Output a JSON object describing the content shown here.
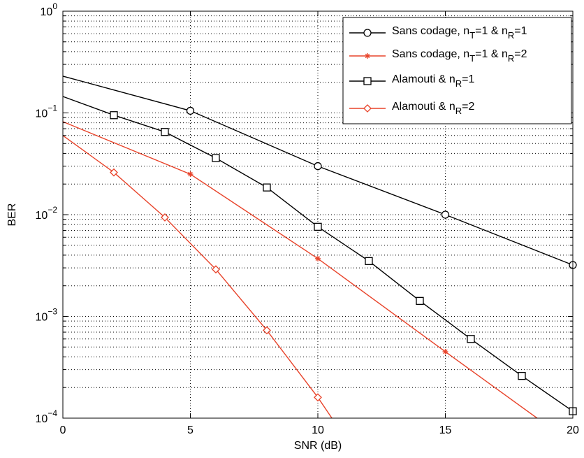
{
  "chart_data": {
    "type": "line",
    "xlabel": "SNR (dB)",
    "ylabel": "BER",
    "xlim": [
      0,
      20
    ],
    "ylim": [
      0.0001,
      1
    ],
    "yscale": "log",
    "grid": true,
    "legend_position": "top-right",
    "x_ticks": [
      "0",
      "5",
      "10",
      "15",
      "20"
    ],
    "y_ticks": [
      {
        "base": "10",
        "exp": "0"
      },
      {
        "base": "10",
        "exp": "−1"
      },
      {
        "base": "10",
        "exp": "−2"
      },
      {
        "base": "10",
        "exp": "−3"
      },
      {
        "base": "10",
        "exp": "−4"
      }
    ],
    "series": [
      {
        "name": "Sans codage, n_T=1 & n_R=1",
        "legend": {
          "pre": "Sans codage, n",
          "s1": "T",
          "mid": "=1 & n",
          "s2": "R",
          "post": "=1"
        },
        "color": "#000000",
        "marker": "circle",
        "line_x": [
          0,
          5,
          10,
          15,
          20
        ],
        "line_y": [
          0.23,
          0.105,
          0.03,
          0.01,
          0.0032
        ],
        "marker_x": [
          5,
          10,
          15,
          20
        ],
        "marker_y": [
          0.105,
          0.03,
          0.01,
          0.0032
        ]
      },
      {
        "name": "Sans codage, n_T=1 & n_R=2",
        "legend": {
          "pre": "Sans codage, n",
          "s1": "T",
          "mid": "=1 & n",
          "s2": "R",
          "post": "=2"
        },
        "color": "#e8432a",
        "marker": "star",
        "line_x": [
          0,
          5,
          10,
          15,
          18.6
        ],
        "line_y": [
          0.082,
          0.025,
          0.0037,
          0.00045,
          0.0001
        ],
        "marker_x": [
          5,
          10,
          15
        ],
        "marker_y": [
          0.025,
          0.0037,
          0.00045
        ]
      },
      {
        "name": "Alamouti & n_R=1",
        "legend": {
          "pre": "Alamouti & n",
          "s1": "",
          "mid": "",
          "s2": "R",
          "post": "=1"
        },
        "color": "#000000",
        "marker": "square",
        "line_x": [
          0,
          2,
          4,
          6,
          8,
          10,
          12,
          14,
          16,
          18,
          20
        ],
        "line_y": [
          0.145,
          0.095,
          0.065,
          0.036,
          0.0185,
          0.0076,
          0.0035,
          0.00142,
          0.0006,
          0.00026,
          0.000117
        ],
        "marker_x": [
          2,
          4,
          6,
          8,
          10,
          12,
          14,
          16,
          18,
          20
        ],
        "marker_y": [
          0.095,
          0.065,
          0.036,
          0.0185,
          0.0076,
          0.0035,
          0.00142,
          0.0006,
          0.00026,
          0.000117
        ]
      },
      {
        "name": "Alamouti & n_R=2",
        "legend": {
          "pre": "Alamouti & n",
          "s1": "",
          "mid": "",
          "s2": "R",
          "post": "=2"
        },
        "color": "#e8432a",
        "marker": "diamond",
        "line_x": [
          0,
          2,
          4,
          6,
          8,
          10,
          10.55
        ],
        "line_y": [
          0.06,
          0.026,
          0.0094,
          0.0029,
          0.00073,
          0.00016,
          0.0001
        ],
        "marker_x": [
          2,
          4,
          6,
          8,
          10
        ],
        "marker_y": [
          0.026,
          0.0094,
          0.0029,
          0.00073,
          0.00016
        ]
      }
    ]
  }
}
